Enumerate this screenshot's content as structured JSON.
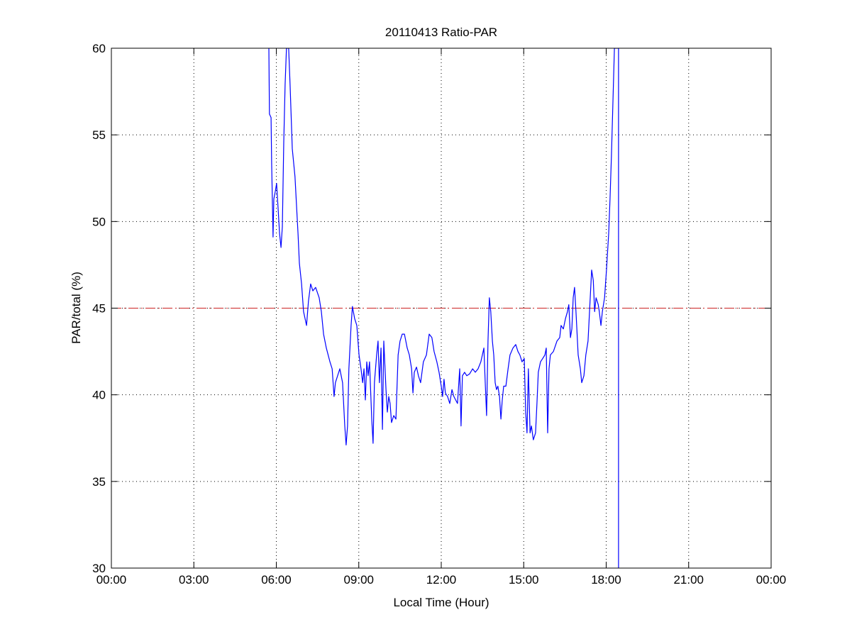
{
  "chart_data": {
    "type": "line",
    "title": "20110413 Ratio-PAR",
    "xlabel": "Local Time (Hour)",
    "ylabel": "PAR/total (%)",
    "xlim": [
      0,
      24
    ],
    "ylim": [
      30,
      60
    ],
    "x_ticks": [
      0,
      3,
      6,
      9,
      12,
      15,
      18,
      21,
      24
    ],
    "x_tick_labels": [
      "00:00",
      "03:00",
      "06:00",
      "09:00",
      "12:00",
      "15:00",
      "18:00",
      "21:00",
      "00:00"
    ],
    "y_ticks": [
      30,
      35,
      40,
      45,
      50,
      55,
      60
    ],
    "y_tick_labels": [
      "30",
      "35",
      "40",
      "45",
      "50",
      "55",
      "60"
    ],
    "grid": true,
    "grid_style": "dotted",
    "reference_line": {
      "y": 45,
      "color": "#cc2222",
      "style": "dash-dot"
    },
    "series": [
      {
        "color": "#0000ff",
        "x": [
          5.73,
          5.75,
          5.81,
          5.83,
          5.88,
          5.91,
          5.96,
          6.01,
          6.06,
          6.12,
          6.17,
          6.22,
          6.27,
          6.32,
          6.37,
          6.45,
          6.5,
          6.58,
          6.68,
          6.79,
          6.84,
          6.92,
          6.99,
          7.1,
          7.17,
          7.25,
          7.33,
          7.43,
          7.56,
          7.64,
          7.72,
          7.82,
          7.95,
          8.03,
          8.1,
          8.15,
          8.23,
          8.31,
          8.41,
          8.49,
          8.54,
          8.59,
          8.64,
          8.72,
          8.77,
          8.85,
          8.93,
          9.01,
          9.08,
          9.14,
          9.19,
          9.24,
          9.29,
          9.34,
          9.39,
          9.47,
          9.52,
          9.57,
          9.65,
          9.7,
          9.75,
          9.81,
          9.86,
          9.91,
          9.99,
          10.04,
          10.09,
          10.14,
          10.19,
          10.27,
          10.35,
          10.43,
          10.5,
          10.58,
          10.66,
          10.76,
          10.84,
          10.92,
          10.97,
          11.02,
          11.1,
          11.17,
          11.25,
          11.35,
          11.46,
          11.56,
          11.66,
          11.74,
          11.84,
          11.92,
          12.0,
          12.05,
          12.1,
          12.15,
          12.23,
          12.31,
          12.39,
          12.46,
          12.59,
          12.67,
          12.72,
          12.77,
          12.85,
          12.93,
          13.03,
          13.14,
          13.24,
          13.34,
          13.44,
          13.55,
          13.6,
          13.65,
          13.7,
          13.75,
          13.8,
          13.86,
          13.91,
          13.96,
          14.01,
          14.06,
          14.12,
          14.17,
          14.22,
          14.27,
          14.35,
          14.43,
          14.5,
          14.61,
          14.71,
          14.79,
          14.86,
          14.94,
          15.02,
          15.07,
          15.12,
          15.17,
          15.23,
          15.28,
          15.35,
          15.43,
          15.48,
          15.53,
          15.61,
          15.69,
          15.77,
          15.82,
          15.87,
          15.92,
          15.97,
          16.08,
          16.21,
          16.31,
          16.36,
          16.44,
          16.52,
          16.59,
          16.64,
          16.7,
          16.75,
          16.8,
          16.85,
          16.9,
          16.98,
          17.06,
          17.11,
          17.19,
          17.26,
          17.34,
          17.42,
          17.47,
          17.53,
          17.58,
          17.63,
          17.71,
          17.75,
          17.81,
          17.86,
          17.94,
          18.01,
          18.09,
          18.14,
          18.19,
          18.24,
          18.3,
          18.45,
          18.45
        ],
        "y": [
          60,
          56.2,
          56.0,
          53.4,
          49.1,
          51.3,
          51.7,
          52.2,
          50.9,
          49.3,
          48.5,
          49.7,
          54.6,
          57.9,
          60,
          60,
          57.9,
          54.2,
          52.6,
          49.3,
          47.6,
          46.4,
          44.8,
          44.0,
          45.4,
          46.4,
          46.0,
          46.2,
          45.6,
          44.8,
          43.5,
          42.7,
          41.9,
          41.5,
          39.9,
          40.7,
          41.1,
          41.5,
          40.7,
          38.2,
          37.1,
          38.2,
          41.5,
          44.0,
          45.1,
          44.4,
          44.0,
          42.3,
          41.5,
          40.7,
          41.5,
          39.7,
          41.9,
          41.1,
          41.9,
          38.6,
          37.2,
          40.7,
          42.3,
          43.1,
          40.7,
          42.7,
          38.0,
          43.1,
          40.3,
          39.0,
          39.9,
          39.5,
          38.4,
          38.8,
          38.6,
          42.3,
          43.1,
          43.5,
          43.5,
          42.7,
          42.3,
          41.5,
          40.1,
          41.3,
          41.6,
          41.1,
          40.7,
          41.9,
          42.3,
          43.5,
          43.3,
          42.5,
          41.9,
          41.3,
          40.5,
          39.9,
          40.9,
          40.1,
          39.9,
          39.5,
          40.3,
          39.9,
          39.5,
          41.5,
          38.2,
          41.1,
          41.3,
          41.1,
          41.2,
          41.5,
          41.3,
          41.5,
          41.9,
          42.7,
          40.7,
          38.8,
          43.1,
          45.6,
          44.8,
          43.1,
          42.3,
          40.7,
          40.3,
          40.5,
          39.9,
          38.6,
          39.7,
          40.5,
          40.5,
          41.5,
          42.3,
          42.7,
          42.9,
          42.5,
          42.3,
          41.9,
          42.1,
          39.0,
          37.8,
          41.5,
          37.8,
          38.2,
          37.4,
          37.8,
          39.5,
          41.3,
          41.9,
          42.1,
          42.3,
          42.7,
          37.8,
          41.5,
          42.3,
          42.5,
          43.1,
          43.3,
          44.0,
          43.8,
          44.4,
          44.8,
          45.2,
          43.3,
          43.8,
          45.6,
          46.2,
          44.8,
          42.3,
          41.5,
          40.7,
          41.1,
          42.3,
          43.1,
          45.6,
          47.2,
          46.6,
          44.8,
          45.6,
          45.2,
          44.8,
          44.0,
          44.8,
          45.6,
          47.2,
          49.3,
          51.3,
          53.8,
          56.6,
          60,
          60,
          30
        ]
      }
    ]
  }
}
